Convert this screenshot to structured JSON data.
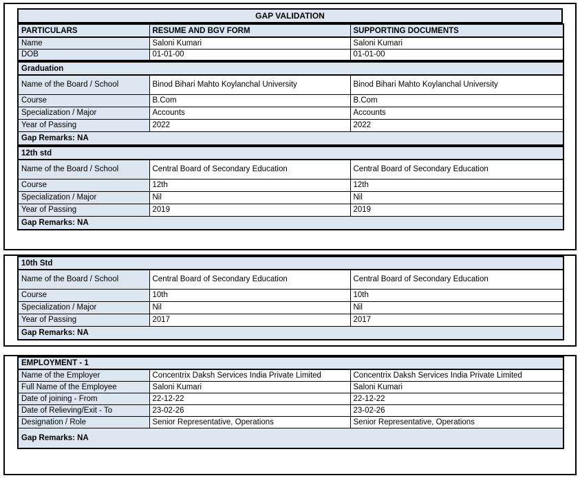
{
  "title": "GAP VALIDATION",
  "table_headers": {
    "particulars": "PARTICULARS",
    "resume": "RESUME AND BGV FORM",
    "supporting": "SUPPORTING DOCUMENTS"
  },
  "personal_rows": [
    {
      "label": "Name",
      "resume": "Saloni Kumari",
      "supporting": "Saloni Kumari"
    },
    {
      "label": "DOB",
      "resume": "01-01-00",
      "supporting": "01-01-00"
    }
  ],
  "sections": [
    {
      "title": "Graduation",
      "rows": [
        {
          "label": "Name of the Board / School",
          "resume": "Binod Bihari Mahto Koylanchal University",
          "supporting": "Binod Bihari Mahto Koylanchal University"
        },
        {
          "label": "Course",
          "resume": "B.Com",
          "supporting": "B.Com"
        },
        {
          "label": "Specialization / Major",
          "resume": "Accounts",
          "supporting": "Accounts"
        },
        {
          "label": "Year of Passing",
          "resume": "2022",
          "supporting": "2022"
        }
      ],
      "gap_remarks": "Gap Remarks: NA"
    },
    {
      "title": "12th std",
      "rows": [
        {
          "label": "Name of the Board / School",
          "resume": "Central Board of Secondary Education",
          "supporting": "Central Board of Secondary Education"
        },
        {
          "label": "Course",
          "resume": "12th",
          "supporting": "12th"
        },
        {
          "label": "Specialization / Major",
          "resume": "Nil",
          "supporting": "Nil"
        },
        {
          "label": "Year of Passing",
          "resume": "2019",
          "supporting": "2019"
        }
      ],
      "gap_remarks": "Gap Remarks: NA"
    },
    {
      "title": "10th Std",
      "rows": [
        {
          "label": "Name of the Board / School",
          "resume": "Central Board of Secondary Education",
          "supporting": "Central Board of Secondary Education"
        },
        {
          "label": "Course",
          "resume": "10th",
          "supporting": "10th"
        },
        {
          "label": "Specialization / Major",
          "resume": "Nil",
          "supporting": "Nil"
        },
        {
          "label": "Year of Passing",
          "resume": "2017",
          "supporting": "2017"
        }
      ],
      "gap_remarks": "Gap Remarks: NA"
    }
  ],
  "employment": {
    "title": "EMPLOYMENT - 1",
    "rows": [
      {
        "label": "Name of the Employer",
        "resume": "Concentrix Daksh Services India Private Limited",
        "supporting": "Concentrix Daksh Services India Private Limited"
      },
      {
        "label": "Full Name of the Employee",
        "resume": "Saloni Kumari",
        "supporting": "Saloni Kumari"
      },
      {
        "label": "Date of joining - From",
        "resume": "22-12-22",
        "supporting": "22-12-22"
      },
      {
        "label": "Date of Relieving/Exit - To",
        "resume": "23-02-26",
        "supporting": "23-02-26"
      },
      {
        "label": "Designation / Role",
        "resume": "Senior Representative, Operations",
        "supporting": "Senior Representative, Operations"
      }
    ],
    "gap_remarks": "Gap Remarks: NA"
  },
  "colors": {
    "header_fill": "#dce6f1",
    "border": "#000000",
    "page_bg": "#ffffff"
  }
}
